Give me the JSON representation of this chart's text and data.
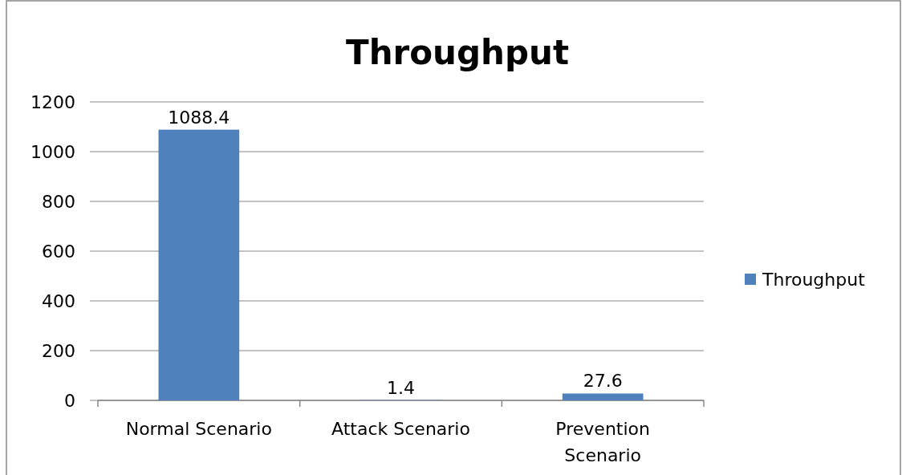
{
  "chart_data": {
    "type": "bar",
    "title": "Throughput",
    "categories": [
      "Normal Scenario",
      "Attack Scenario",
      "Prevention Scenario"
    ],
    "series": [
      {
        "name": "Throughput",
        "color": "#4f81bd",
        "values": [
          1088.4,
          1.4,
          27.6
        ]
      }
    ],
    "ylim": [
      0,
      1200
    ],
    "yticks": [
      0,
      200,
      400,
      600,
      800,
      1000,
      1200
    ],
    "grid": "y",
    "legend": "right",
    "data_labels": true
  }
}
